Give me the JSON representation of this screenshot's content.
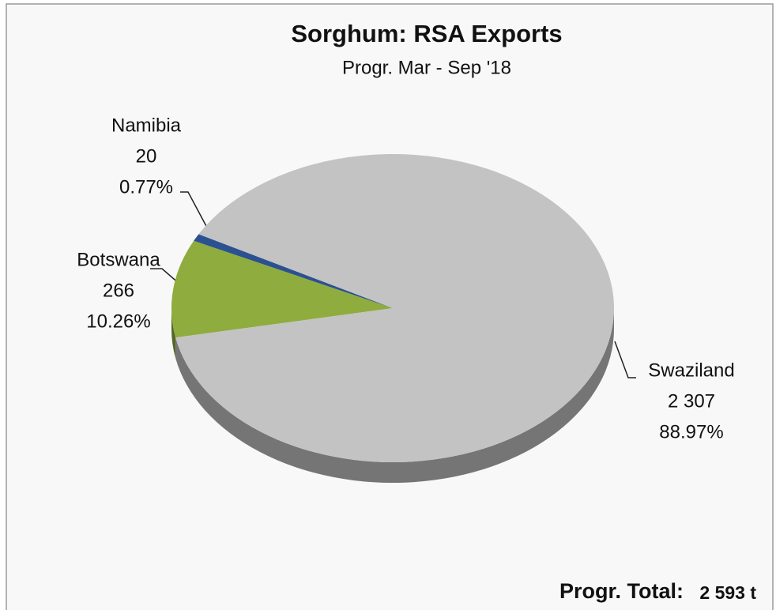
{
  "chart_data": {
    "type": "pie",
    "title": "Sorghum: RSA Exports",
    "subtitle": "Progr. Mar  - Sep '18",
    "categories": [
      "Botswana",
      "Namibia",
      "Swaziland"
    ],
    "values": [
      266,
      20,
      2307
    ],
    "value_labels": [
      "266",
      "20",
      "2 307"
    ],
    "percentages": [
      {
        "value": 10.26,
        "label": "10.26%"
      },
      {
        "value": 0.77,
        "label": "0.77%"
      },
      {
        "value": 88.97,
        "label": "88.97%"
      }
    ],
    "colors": [
      "#8fac3e",
      "#2b5190",
      "#c3c3c3"
    ],
    "total_label": "Progr. Total:",
    "total": "2 593 t"
  }
}
